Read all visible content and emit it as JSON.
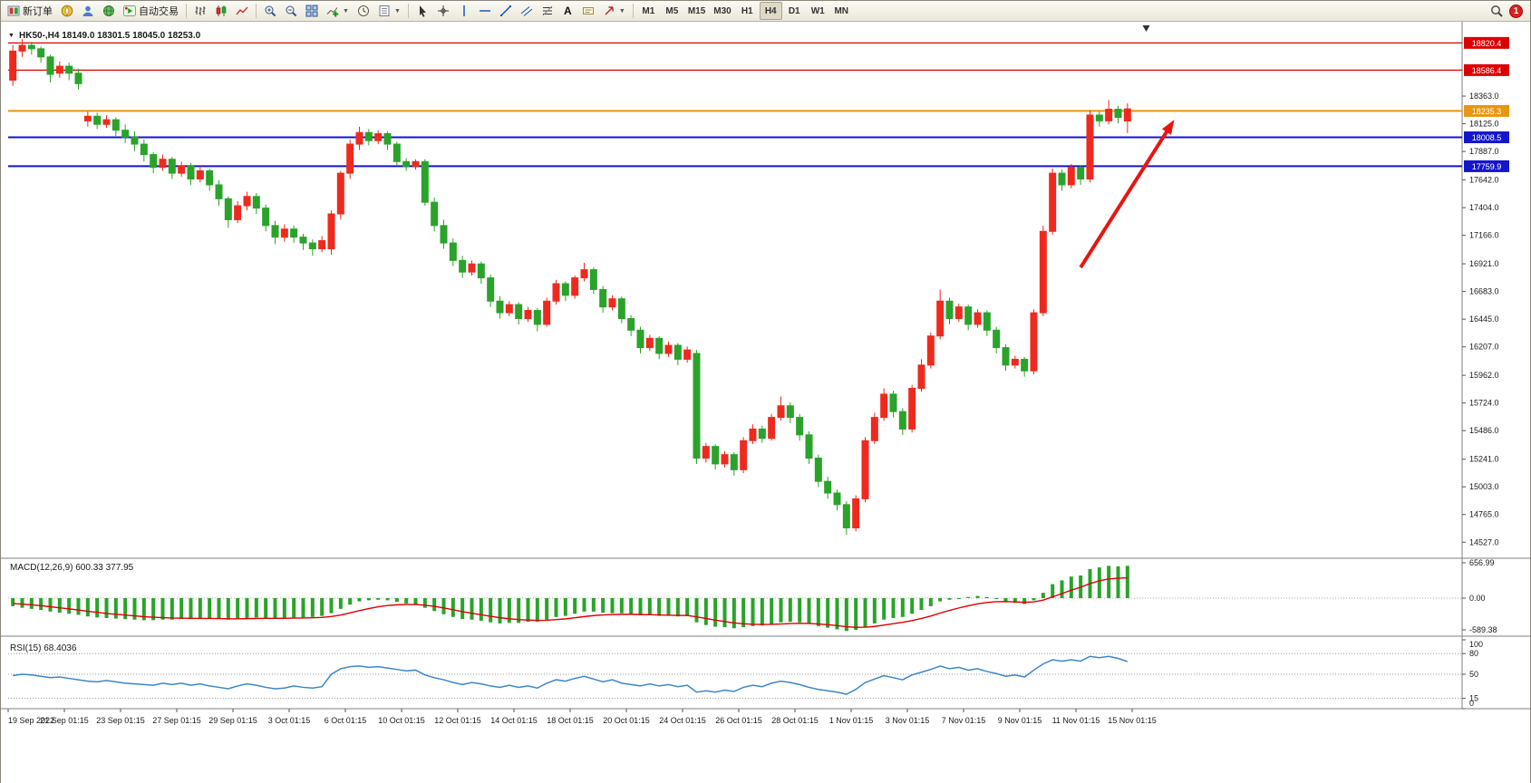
{
  "window": {
    "badge_count": "1"
  },
  "toolbar": {
    "new_order_label": "新订单",
    "auto_trading_label": "自动交易",
    "text_tool_label": "A",
    "timeframes": [
      "M1",
      "M5",
      "M15",
      "M30",
      "H1",
      "H4",
      "D1",
      "W1",
      "MN"
    ],
    "active_timeframe": "H4"
  },
  "chart_data": {
    "type": "candlestick",
    "header": {
      "symbol": "HK50-,H4",
      "ohlc": "18149.0 18301.5 18045.0 18253.0"
    },
    "colors": {
      "up": "#ee2a1e",
      "down": "#2aa32a",
      "macd_hist": "#2aa32a",
      "macd_signal": "#e00000",
      "rsi_line": "#3c87cc",
      "arrow": "#e8150f"
    },
    "price_axis": [
      "18363.0",
      "18125.0",
      "17887.0",
      "17642.0",
      "17404.0",
      "17166.0",
      "16921.0",
      "16683.0",
      "16445.0",
      "16207.0",
      "15962.0",
      "15724.0",
      "15486.0",
      "15241.0",
      "15003.0",
      "14765.0",
      "14527.0"
    ],
    "levels": [
      {
        "label": "18820.4",
        "price": 18820.4,
        "color": "#dd0000",
        "width": 1.2
      },
      {
        "label": "18586.4",
        "price": 18586.4,
        "color": "#dd0000",
        "width": 1.2
      },
      {
        "label": "18235.3",
        "price": 18235.3,
        "color": "#e8960f",
        "width": 2
      },
      {
        "label": "18008.5",
        "price": 18008.5,
        "color": "#1515cc",
        "width": 2
      },
      {
        "label": "17759.9",
        "price": 17759.9,
        "color": "#1515cc",
        "width": 2
      }
    ],
    "candles": [
      [
        18500,
        18800,
        18450,
        18750
      ],
      [
        18750,
        18850,
        18700,
        18800
      ],
      [
        18800,
        18830,
        18720,
        18770
      ],
      [
        18770,
        18790,
        18650,
        18700
      ],
      [
        18700,
        18720,
        18480,
        18550
      ],
      [
        18560,
        18660,
        18520,
        18620
      ],
      [
        18620,
        18650,
        18500,
        18560
      ],
      [
        18560,
        18600,
        18420,
        18470
      ],
      [
        18150,
        18230,
        18100,
        18190
      ],
      [
        18190,
        18220,
        18080,
        18120
      ],
      [
        18120,
        18200,
        18090,
        18160
      ],
      [
        18160,
        18180,
        18020,
        18070
      ],
      [
        18070,
        18120,
        17960,
        18010
      ],
      [
        18010,
        18060,
        17890,
        17950
      ],
      [
        17950,
        17990,
        17800,
        17860
      ],
      [
        17860,
        17880,
        17700,
        17750
      ],
      [
        17750,
        17860,
        17720,
        17820
      ],
      [
        17820,
        17840,
        17650,
        17700
      ],
      [
        17700,
        17800,
        17670,
        17760
      ],
      [
        17760,
        17790,
        17600,
        17650
      ],
      [
        17650,
        17760,
        17620,
        17720
      ],
      [
        17720,
        17740,
        17550,
        17600
      ],
      [
        17600,
        17640,
        17420,
        17480
      ],
      [
        17480,
        17500,
        17230,
        17300
      ],
      [
        17300,
        17460,
        17270,
        17420
      ],
      [
        17420,
        17540,
        17380,
        17500
      ],
      [
        17500,
        17530,
        17350,
        17400
      ],
      [
        17400,
        17430,
        17200,
        17250
      ],
      [
        17250,
        17290,
        17090,
        17150
      ],
      [
        17150,
        17260,
        17110,
        17220
      ],
      [
        17220,
        17250,
        17100,
        17150
      ],
      [
        17150,
        17180,
        17040,
        17100
      ],
      [
        17100,
        17130,
        16990,
        17050
      ],
      [
        17050,
        17160,
        17020,
        17120
      ],
      [
        17050,
        17380,
        17000,
        17350
      ],
      [
        17350,
        17720,
        17300,
        17700
      ],
      [
        17700,
        17990,
        17650,
        17950
      ],
      [
        17950,
        18100,
        17900,
        18050
      ],
      [
        18050,
        18080,
        17940,
        17980
      ],
      [
        17980,
        18070,
        17950,
        18040
      ],
      [
        18040,
        18060,
        17900,
        17950
      ],
      [
        17950,
        17970,
        17770,
        17800
      ],
      [
        17800,
        17830,
        17720,
        17760
      ],
      [
        17760,
        17820,
        17730,
        17800
      ],
      [
        17800,
        17820,
        17420,
        17450
      ],
      [
        17450,
        17490,
        17200,
        17250
      ],
      [
        17250,
        17300,
        17050,
        17100
      ],
      [
        17100,
        17140,
        16900,
        16950
      ],
      [
        16950,
        16990,
        16800,
        16850
      ],
      [
        16850,
        16950,
        16820,
        16920
      ],
      [
        16920,
        16940,
        16750,
        16800
      ],
      [
        16800,
        16830,
        16550,
        16600
      ],
      [
        16600,
        16640,
        16450,
        16500
      ],
      [
        16500,
        16600,
        16470,
        16570
      ],
      [
        16570,
        16590,
        16400,
        16450
      ],
      [
        16450,
        16550,
        16420,
        16520
      ],
      [
        16520,
        16540,
        16340,
        16400
      ],
      [
        16400,
        16630,
        16380,
        16600
      ],
      [
        16600,
        16780,
        16570,
        16750
      ],
      [
        16750,
        16770,
        16600,
        16650
      ],
      [
        16650,
        16820,
        16620,
        16800
      ],
      [
        16800,
        16930,
        16770,
        16870
      ],
      [
        16870,
        16890,
        16660,
        16700
      ],
      [
        16700,
        16730,
        16500,
        16550
      ],
      [
        16550,
        16650,
        16520,
        16620
      ],
      [
        16620,
        16640,
        16410,
        16450
      ],
      [
        16450,
        16480,
        16300,
        16350
      ],
      [
        16350,
        16380,
        16150,
        16200
      ],
      [
        16200,
        16310,
        16170,
        16280
      ],
      [
        16280,
        16300,
        16100,
        16150
      ],
      [
        16150,
        16250,
        16120,
        16220
      ],
      [
        16220,
        16240,
        16050,
        16100
      ],
      [
        16100,
        16210,
        16070,
        16180
      ],
      [
        16150,
        16180,
        15200,
        15250
      ],
      [
        15250,
        15380,
        15210,
        15350
      ],
      [
        15350,
        15370,
        15150,
        15200
      ],
      [
        15200,
        15310,
        15170,
        15280
      ],
      [
        15280,
        15300,
        15100,
        15150
      ],
      [
        15150,
        15430,
        15120,
        15400
      ],
      [
        15400,
        15540,
        15370,
        15500
      ],
      [
        15500,
        15530,
        15380,
        15420
      ],
      [
        15420,
        15630,
        15400,
        15600
      ],
      [
        15600,
        15780,
        15570,
        15700
      ],
      [
        15700,
        15730,
        15550,
        15600
      ],
      [
        15600,
        15630,
        15400,
        15450
      ],
      [
        15450,
        15480,
        15200,
        15250
      ],
      [
        15250,
        15280,
        15000,
        15050
      ],
      [
        15050,
        15090,
        14900,
        14950
      ],
      [
        14950,
        14980,
        14800,
        14850
      ],
      [
        14850,
        14880,
        14590,
        14650
      ],
      [
        14650,
        14930,
        14620,
        14900
      ],
      [
        14900,
        15430,
        14870,
        15400
      ],
      [
        15400,
        15640,
        15370,
        15600
      ],
      [
        15600,
        15850,
        15570,
        15800
      ],
      [
        15800,
        15830,
        15600,
        15650
      ],
      [
        15650,
        15680,
        15450,
        15500
      ],
      [
        15500,
        15880,
        15470,
        15850
      ],
      [
        15850,
        16100,
        15820,
        16050
      ],
      [
        16050,
        16330,
        16020,
        16300
      ],
      [
        16300,
        16700,
        16270,
        16600
      ],
      [
        16600,
        16630,
        16400,
        16450
      ],
      [
        16450,
        16580,
        16420,
        16550
      ],
      [
        16550,
        16570,
        16350,
        16400
      ],
      [
        16400,
        16530,
        16370,
        16500
      ],
      [
        16500,
        16520,
        16300,
        16350
      ],
      [
        16350,
        16380,
        16150,
        16200
      ],
      [
        16200,
        16230,
        16000,
        16050
      ],
      [
        16050,
        16130,
        16020,
        16100
      ],
      [
        16100,
        16120,
        15950,
        16000
      ],
      [
        16000,
        16530,
        15970,
        16500
      ],
      [
        16500,
        17250,
        16470,
        17200
      ],
      [
        17200,
        17740,
        17170,
        17700
      ],
      [
        17700,
        17730,
        17550,
        17600
      ],
      [
        17600,
        17780,
        17570,
        17750
      ],
      [
        17750,
        17770,
        17600,
        17650
      ],
      [
        17650,
        18240,
        17620,
        18200
      ],
      [
        18200,
        18230,
        18100,
        18150
      ],
      [
        18150,
        18330,
        18120,
        18250
      ],
      [
        18250,
        18280,
        18130,
        18180
      ],
      [
        18149,
        18301.5,
        18045,
        18253
      ]
    ],
    "x_labels": [
      "19 Sep 2022",
      "21 Sep 01:15",
      "23 Sep 01:15",
      "27 Sep 01:15",
      "29 Sep 01:15",
      "3 Oct 01:15",
      "6 Oct 01:15",
      "10 Oct 01:15",
      "12 Oct 01:15",
      "14 Oct 01:15",
      "18 Oct 01:15",
      "20 Oct 01:15",
      "24 Oct 01:15",
      "26 Oct 01:15",
      "28 Oct 01:15",
      "1 Nov 01:15",
      "3 Nov 01:15",
      "7 Nov 01:15",
      "9 Nov 01:15",
      "11 Nov 01:15",
      "15 Nov 01:15"
    ],
    "macd": {
      "label": "MACD(12,26,9) 600.33 377.95",
      "axis": [
        "656.99",
        "0.00",
        "-589.38"
      ],
      "hist": [
        -150,
        -180,
        -200,
        -220,
        -250,
        -270,
        -290,
        -310,
        -340,
        -360,
        -370,
        -380,
        -390,
        -400,
        -410,
        -410,
        -400,
        -400,
        -390,
        -390,
        -380,
        -380,
        -390,
        -400,
        -390,
        -370,
        -360,
        -370,
        -380,
        -370,
        -360,
        -360,
        -350,
        -330,
        -280,
        -200,
        -120,
        -60,
        -40,
        -30,
        -40,
        -70,
        -100,
        -120,
        -180,
        -240,
        -300,
        -350,
        -390,
        -400,
        -420,
        -450,
        -470,
        -460,
        -460,
        -440,
        -440,
        -400,
        -350,
        -330,
        -290,
        -250,
        -250,
        -270,
        -280,
        -280,
        -300,
        -320,
        -320,
        -330,
        -330,
        -340,
        -330,
        -450,
        -500,
        -530,
        -540,
        -560,
        -540,
        -520,
        -510,
        -480,
        -450,
        -440,
        -450,
        -480,
        -520,
        -550,
        -580,
        -610,
        -590,
        -530,
        -470,
        -400,
        -370,
        -350,
        -290,
        -220,
        -150,
        -60,
        -30,
        0,
        20,
        40,
        20,
        -10,
        -60,
        -90,
        -110,
        -40,
        100,
        260,
        330,
        400,
        420,
        540,
        570,
        600,
        590,
        600.33
      ],
      "signal": [
        -100,
        -110,
        -125,
        -140,
        -160,
        -180,
        -200,
        -220,
        -245,
        -265,
        -285,
        -300,
        -315,
        -330,
        -345,
        -355,
        -363,
        -370,
        -373,
        -376,
        -377,
        -377,
        -379,
        -383,
        -384,
        -381,
        -377,
        -375,
        -376,
        -375,
        -372,
        -369,
        -365,
        -358,
        -342,
        -314,
        -275,
        -232,
        -194,
        -161,
        -137,
        -124,
        -119,
        -119,
        -131,
        -153,
        -182,
        -216,
        -251,
        -281,
        -309,
        -337,
        -364,
        -383,
        -398,
        -407,
        -413,
        -411,
        -399,
        -385,
        -366,
        -343,
        -324,
        -313,
        -307,
        -301,
        -301,
        -305,
        -308,
        -312,
        -316,
        -321,
        -322,
        -348,
        -378,
        -409,
        -435,
        -460,
        -476,
        -485,
        -490,
        -488,
        -480,
        -472,
        -468,
        -470,
        -480,
        -494,
        -511,
        -531,
        -543,
        -540,
        -526,
        -501,
        -475,
        -450,
        -418,
        -378,
        -333,
        -278,
        -228,
        -183,
        -142,
        -106,
        -81,
        -66,
        -65,
        -70,
        -78,
        -70,
        -36,
        23,
        84,
        148,
        202,
        270,
        320,
        356,
        370,
        377.95
      ]
    },
    "rsi": {
      "label": "RSI(15) 68.4036",
      "axis": [
        "100",
        "80",
        "50",
        "15",
        "0"
      ],
      "dash_levels": [
        80,
        50,
        15
      ],
      "values": [
        48,
        50,
        49,
        47,
        45,
        46,
        44,
        42,
        40,
        39,
        41,
        39,
        37,
        36,
        35,
        34,
        37,
        35,
        37,
        34,
        36,
        33,
        31,
        29,
        33,
        36,
        34,
        31,
        29,
        30,
        33,
        31,
        30,
        32,
        50,
        58,
        61,
        62,
        60,
        61,
        59,
        57,
        55,
        56,
        49,
        45,
        42,
        38,
        35,
        38,
        36,
        33,
        31,
        34,
        31,
        33,
        30,
        37,
        42,
        40,
        44,
        47,
        43,
        39,
        42,
        37,
        35,
        33,
        36,
        33,
        35,
        32,
        34,
        24,
        26,
        24,
        27,
        25,
        31,
        34,
        32,
        37,
        40,
        38,
        35,
        31,
        28,
        26,
        24,
        21,
        28,
        38,
        43,
        48,
        45,
        42,
        49,
        53,
        57,
        62,
        58,
        60,
        56,
        58,
        54,
        51,
        47,
        49,
        46,
        56,
        65,
        71,
        69,
        71,
        69,
        76,
        74,
        76,
        73,
        68.4
      ]
    },
    "arrow": {
      "bar_from": 114,
      "price_from": 16890,
      "bar_to": 124,
      "price_to": 18160
    },
    "end_marker_bar": 121.5
  }
}
